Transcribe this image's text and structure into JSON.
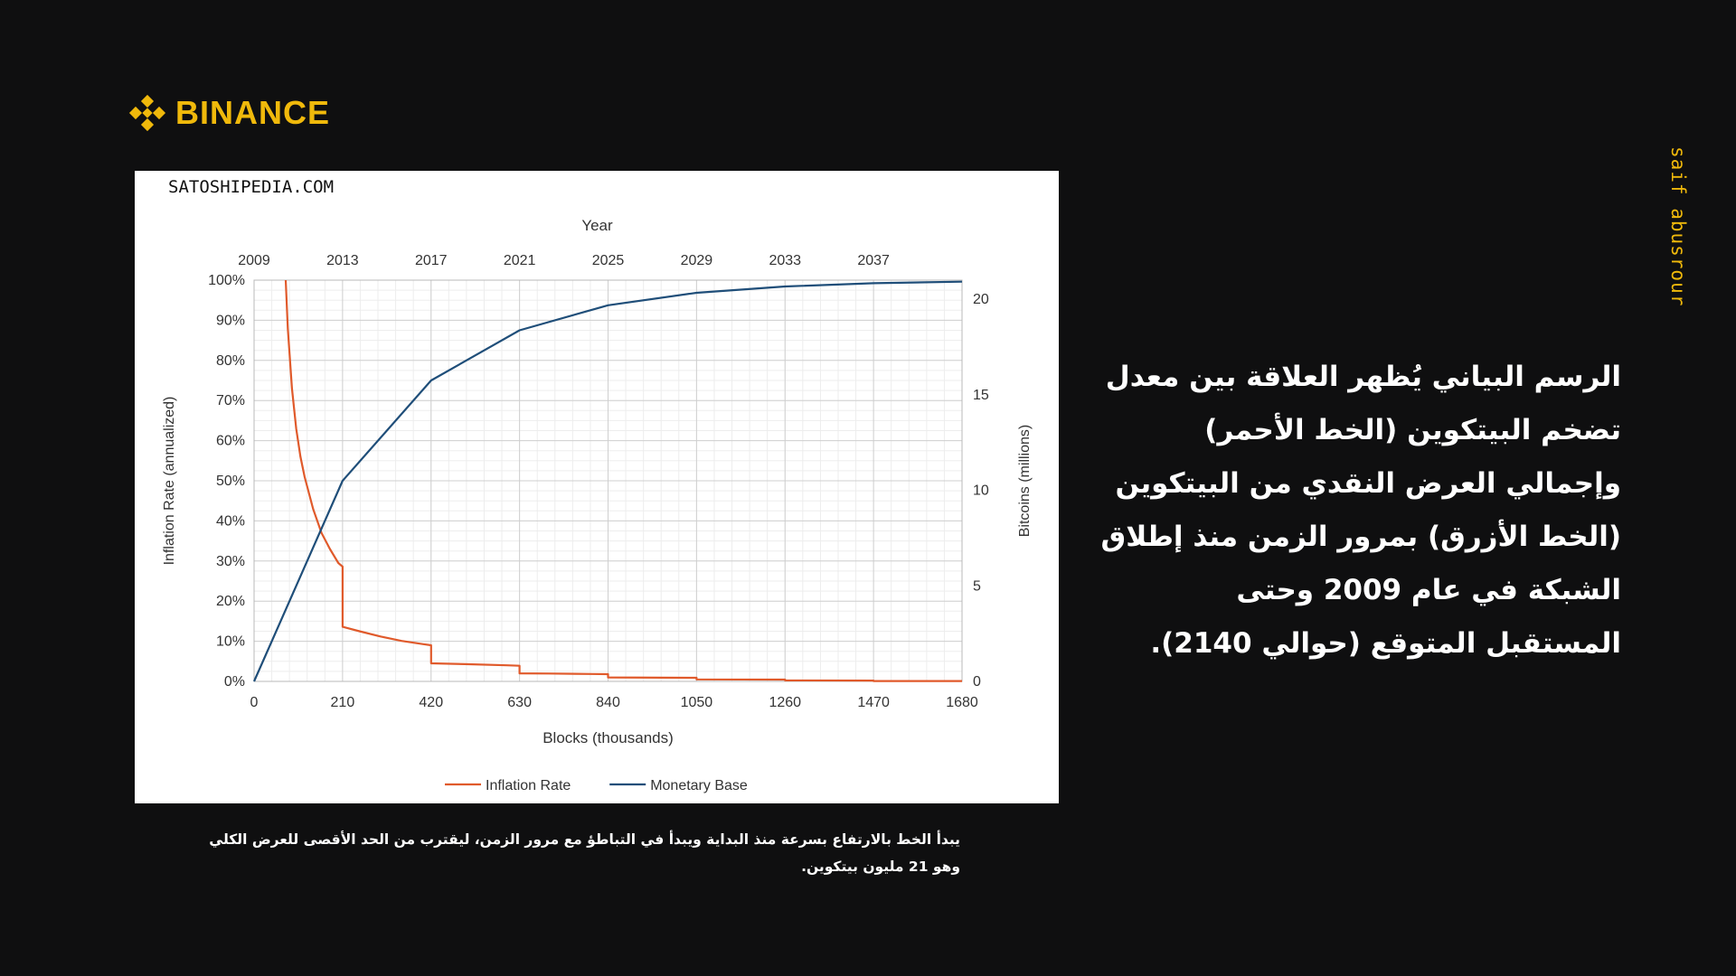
{
  "brand": {
    "name": "BINANCE",
    "logo_icon": "binance-diamond-icon",
    "color": "#f0b90b"
  },
  "author": "saif abusrour",
  "description": "الرسم البياني يُظهر العلاقة بين معدل تضخم البيتكوين (الخط الأحمر) وإجمالي العرض النقدي من البيتكوين (الخط الأزرق) بمرور الزمن منذ إطلاق الشبكة في عام 2009 وحتى المستقبل المتوقع (حوالي 2140).",
  "caption": "يبدأ الخط بالارتفاع بسرعة منذ البداية ويبدأ في التباطؤ مع مرور الزمن، ليقترب من الحد الأقصى للعرض الكلي وهو 21 مليون بيتكوين.",
  "chart_data": {
    "type": "line",
    "watermark": "SATOSHIPEDIA.COM",
    "title": "",
    "top_axis": {
      "label": "Year",
      "ticks": [
        "2009",
        "2013",
        "2017",
        "2021",
        "2025",
        "2029",
        "2033",
        "2037"
      ],
      "tick_positions": [
        0,
        210,
        420,
        630,
        840,
        1050,
        1260,
        1470
      ]
    },
    "xlabel": "Blocks (thousands)",
    "x_ticks": [
      0,
      210,
      420,
      630,
      840,
      1050,
      1260,
      1470,
      1680
    ],
    "xlim": [
      0,
      1680
    ],
    "ylabel_left": "Inflation Rate (annualized)",
    "y_left_ticks": [
      "0%",
      "10%",
      "20%",
      "30%",
      "40%",
      "50%",
      "60%",
      "70%",
      "80%",
      "90%",
      "100%"
    ],
    "ylim_left": [
      0,
      100
    ],
    "ylabel_right": "Bitcoins (millions)",
    "y_right_ticks": [
      0,
      5,
      10,
      15,
      20
    ],
    "ylim_right": [
      0,
      21
    ],
    "grid": true,
    "legend_position": "bottom-center",
    "series": [
      {
        "name": "Inflation Rate",
        "axis": "left",
        "color": "#e05a2b",
        "points": [
          [
            75,
            100
          ],
          [
            80,
            88
          ],
          [
            90,
            73
          ],
          [
            100,
            63
          ],
          [
            110,
            56
          ],
          [
            120,
            51
          ],
          [
            140,
            43
          ],
          [
            160,
            37
          ],
          [
            180,
            33
          ],
          [
            200,
            29.5
          ],
          [
            210,
            28.6
          ],
          [
            210,
            13.6
          ],
          [
            250,
            12.5
          ],
          [
            300,
            11.2
          ],
          [
            350,
            10.1
          ],
          [
            400,
            9.3
          ],
          [
            420,
            9
          ],
          [
            420,
            4.5
          ],
          [
            500,
            4.3
          ],
          [
            600,
            4.0
          ],
          [
            630,
            3.9
          ],
          [
            630,
            2.0
          ],
          [
            700,
            1.95
          ],
          [
            800,
            1.85
          ],
          [
            840,
            1.8
          ],
          [
            840,
            1.0
          ],
          [
            1050,
            0.9
          ],
          [
            1050,
            0.5
          ],
          [
            1260,
            0.45
          ],
          [
            1260,
            0.25
          ],
          [
            1470,
            0.2
          ],
          [
            1470,
            0.1
          ],
          [
            1680,
            0.1
          ]
        ]
      },
      {
        "name": "Monetary Base",
        "axis": "right",
        "color": "#1f4e79",
        "points": [
          [
            0,
            0
          ],
          [
            210,
            10.5
          ],
          [
            420,
            15.75
          ],
          [
            630,
            18.375
          ],
          [
            840,
            19.6875
          ],
          [
            1050,
            20.34
          ],
          [
            1260,
            20.67
          ],
          [
            1470,
            20.84
          ],
          [
            1680,
            20.92
          ]
        ]
      }
    ]
  }
}
